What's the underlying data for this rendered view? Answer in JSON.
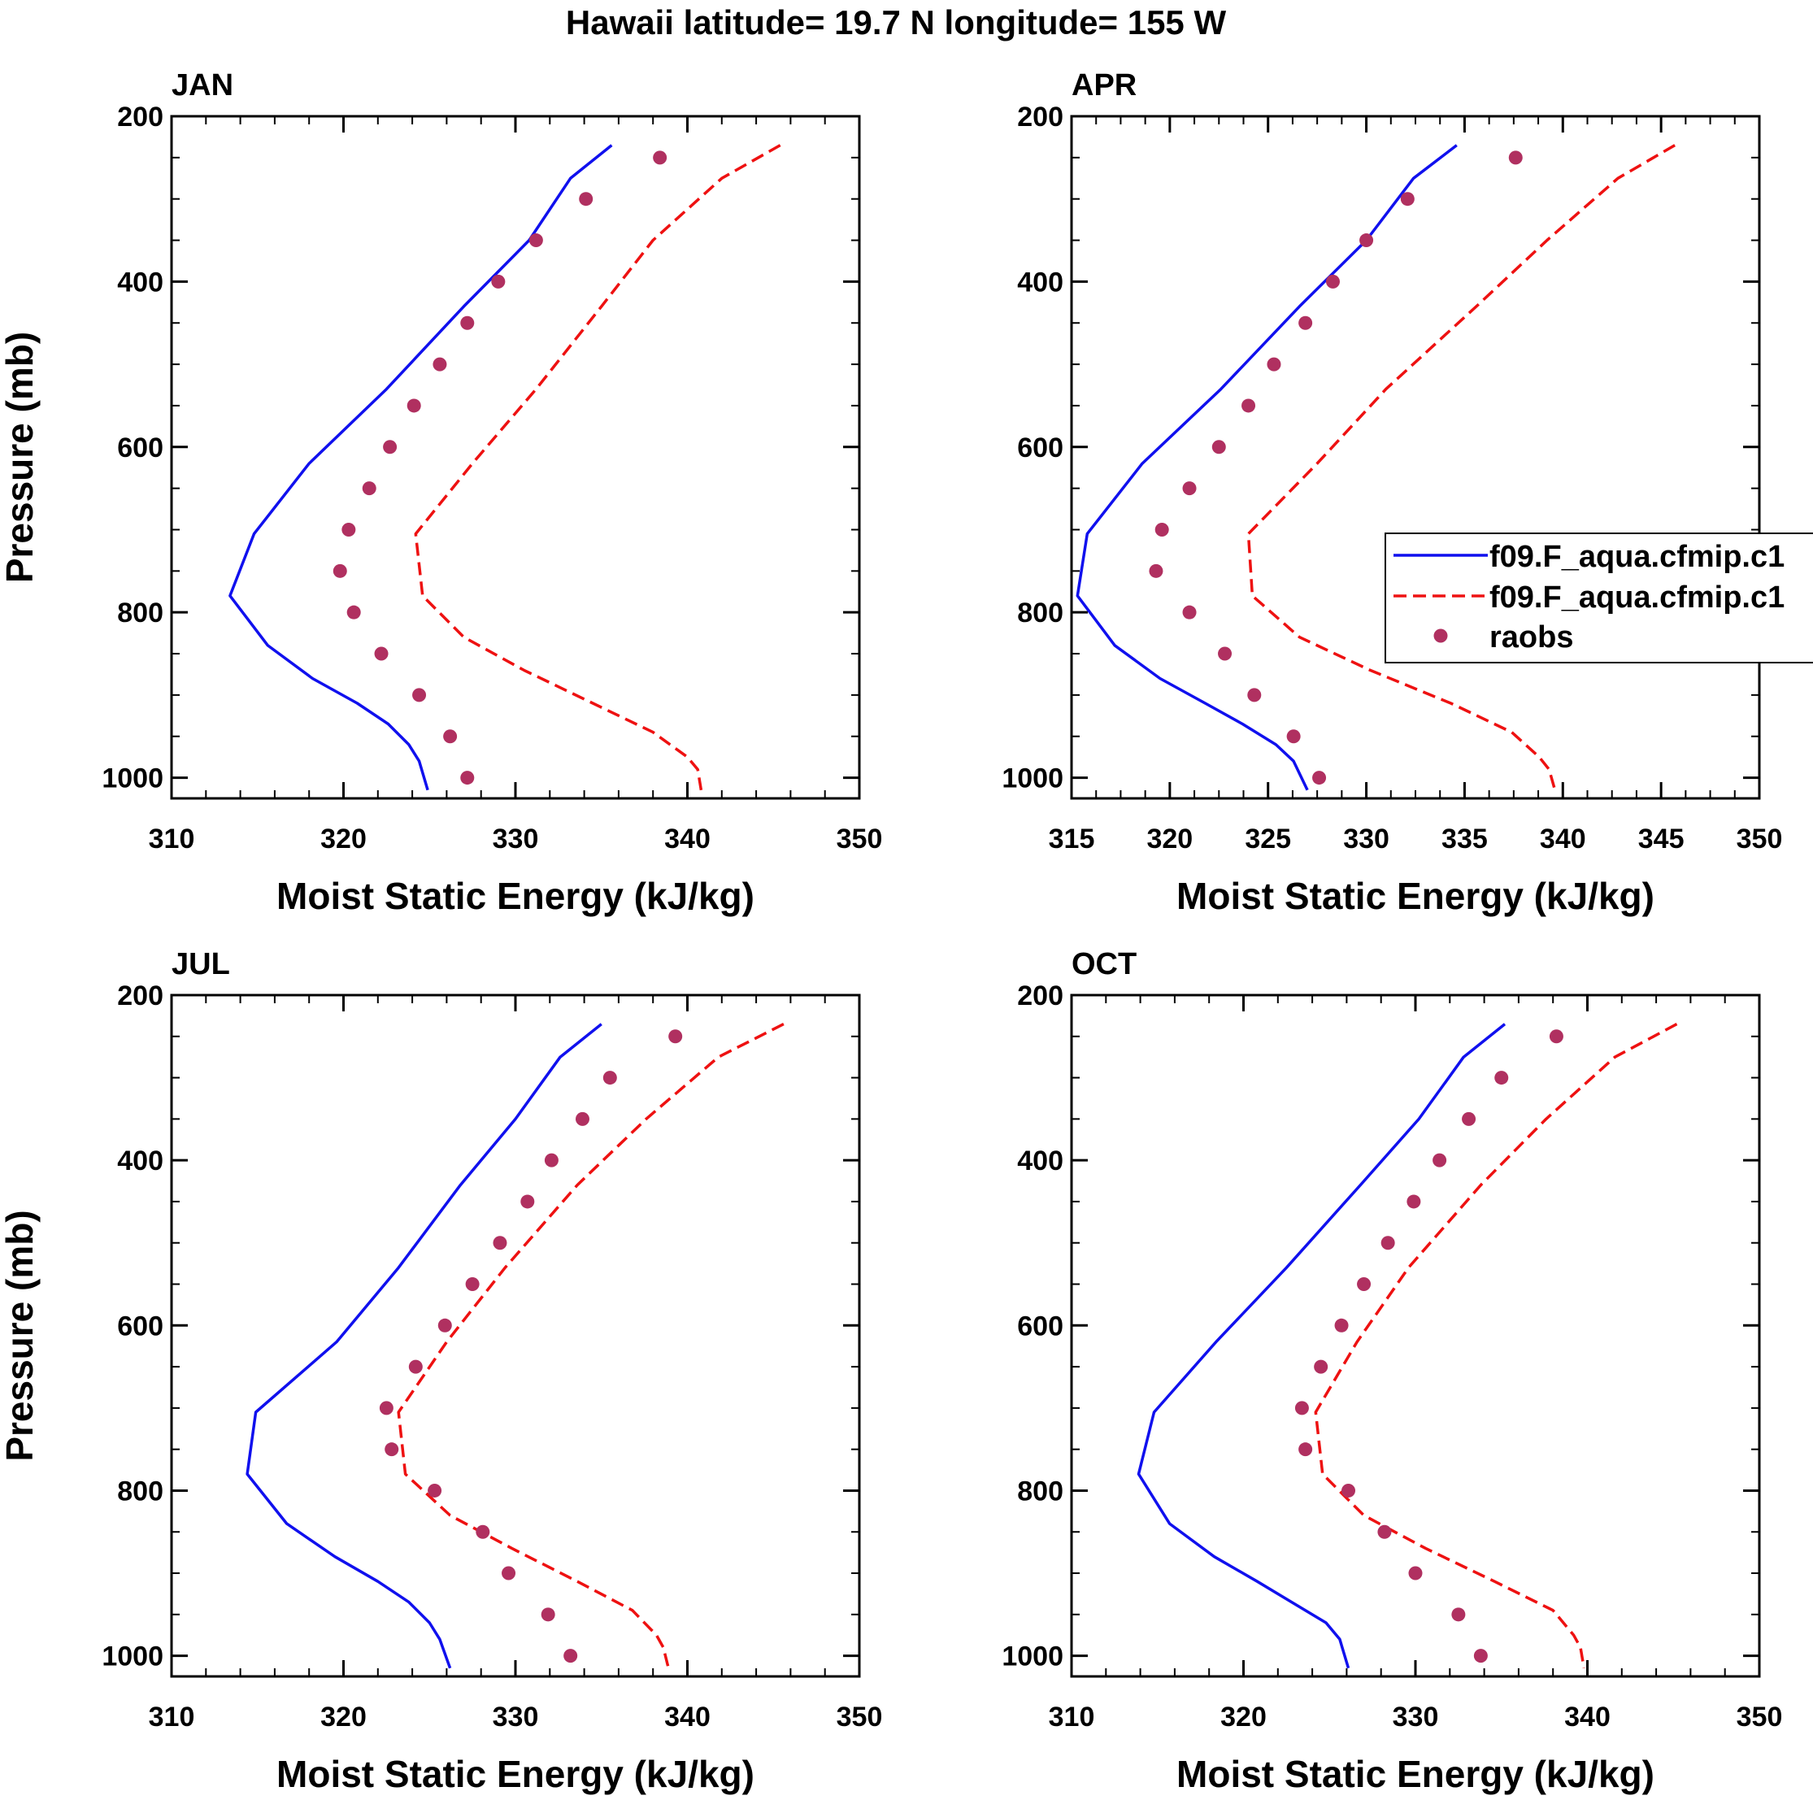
{
  "chart_data": {
    "type": "line",
    "title": "Hawaii  latitude= 19.7 N longitude= 155 W",
    "legend": {
      "placement": "right of APR panel",
      "entries": [
        {
          "label": "f09.F_aqua.cfmip.c1",
          "style": "solid",
          "color": "#1010ee"
        },
        {
          "label": "f09.F_aqua.cfmip.c1",
          "style": "dashed",
          "color": "#ee1111"
        },
        {
          "label": "raobs",
          "style": "markers",
          "color": "#b03060"
        }
      ]
    },
    "panels": [
      {
        "name": "JAN",
        "xlabel": "Moist Static Energy (kJ/kg)",
        "ylabel": "Pressure (mb)",
        "xlim": [
          310,
          350
        ],
        "xticks": [
          310,
          320,
          330,
          340,
          350
        ],
        "ylim": [
          1025,
          200
        ],
        "yticks": [
          200,
          400,
          600,
          800,
          1000
        ],
        "series": [
          {
            "name": "f09.F_aqua.cfmip.c1 (solid)",
            "style": "solid",
            "color": "#1010ee",
            "x": [
              335.6,
              333.2,
              330.8,
              327.0,
              322.5,
              318.0,
              314.8,
              313.4,
              315.6,
              318.2,
              320.8,
              322.6,
              323.8,
              324.4,
              324.9
            ],
            "y": [
              235,
              275,
              350,
              430,
              530,
              620,
              705,
              780,
              840,
              880,
              910,
              935,
              960,
              980,
              1015
            ]
          },
          {
            "name": "f09.F_aqua.cfmip.c1 (dashed)",
            "style": "dashed",
            "color": "#ee1111",
            "x": [
              345.4,
              342.0,
              338.0,
              335.0,
              331.2,
              327.5,
              324.2,
              324.6,
              327.0,
              330.5,
              334.5,
              338.0,
              340.0,
              340.6,
              340.8
            ],
            "y": [
              235,
              275,
              350,
              430,
              530,
              620,
              705,
              780,
              830,
              870,
              910,
              945,
              975,
              990,
              1015
            ]
          },
          {
            "name": "raobs",
            "style": "markers",
            "color": "#b03060",
            "x": [
              338.4,
              334.1,
              331.2,
              329.0,
              327.2,
              325.6,
              324.1,
              322.7,
              321.5,
              320.3,
              319.8,
              320.6,
              322.2,
              324.4,
              326.2,
              327.2
            ],
            "y": [
              250,
              300,
              350,
              400,
              450,
              500,
              550,
              600,
              650,
              700,
              750,
              800,
              850,
              900,
              950,
              1000
            ]
          }
        ]
      },
      {
        "name": "APR",
        "xlabel": "Moist Static Energy (kJ/kg)",
        "ylabel": "",
        "xlim": [
          315,
          350
        ],
        "xticks": [
          315,
          320,
          325,
          330,
          335,
          340,
          345,
          350
        ],
        "ylim": [
          1025,
          200
        ],
        "yticks": [
          200,
          400,
          600,
          800,
          1000
        ],
        "series": [
          {
            "name": "f09.F_aqua.cfmip.c1 (solid)",
            "style": "solid",
            "color": "#1010ee",
            "x": [
              334.6,
              332.4,
              330.0,
              326.6,
              322.6,
              318.6,
              315.8,
              315.3,
              317.2,
              319.5,
              321.8,
              323.7,
              325.4,
              326.3,
              327.0
            ],
            "y": [
              235,
              275,
              350,
              430,
              530,
              620,
              705,
              780,
              840,
              880,
              910,
              935,
              960,
              980,
              1015
            ]
          },
          {
            "name": "f09.F_aqua.cfmip.c1 (dashed)",
            "style": "dashed",
            "color": "#ee1111",
            "x": [
              345.7,
              342.8,
              339.2,
              335.6,
              331.0,
              327.5,
              324.0,
              324.2,
              326.6,
              330.2,
              334.3,
              337.4,
              338.8,
              339.3,
              339.6
            ],
            "y": [
              235,
              275,
              350,
              430,
              530,
              620,
              705,
              780,
              830,
              870,
              910,
              945,
              975,
              990,
              1015
            ]
          },
          {
            "name": "raobs",
            "style": "markers",
            "color": "#b03060",
            "x": [
              337.6,
              332.1,
              330.0,
              328.3,
              326.9,
              325.3,
              324.0,
              322.5,
              321.0,
              319.6,
              319.3,
              321.0,
              322.8,
              324.3,
              326.3,
              327.6
            ],
            "y": [
              250,
              300,
              350,
              400,
              450,
              500,
              550,
              600,
              650,
              700,
              750,
              800,
              850,
              900,
              950,
              1000
            ]
          }
        ]
      },
      {
        "name": "JUL",
        "xlabel": "Moist Static Energy (kJ/kg)",
        "ylabel": "Pressure (mb)",
        "xlim": [
          310,
          350
        ],
        "xticks": [
          310,
          320,
          330,
          340,
          350
        ],
        "ylim": [
          1025,
          200
        ],
        "yticks": [
          200,
          400,
          600,
          800,
          1000
        ],
        "series": [
          {
            "name": "f09.F_aqua.cfmip.c1 (solid)",
            "style": "solid",
            "color": "#1010ee",
            "x": [
              335.0,
              332.6,
              330.0,
              326.8,
              323.2,
              319.6,
              314.9,
              314.4,
              316.7,
              319.5,
              322.0,
              323.8,
              325.0,
              325.6,
              326.2
            ],
            "y": [
              235,
              275,
              350,
              430,
              530,
              620,
              705,
              780,
              840,
              880,
              910,
              935,
              960,
              980,
              1015
            ]
          },
          {
            "name": "f09.F_aqua.cfmip.c1 (dashed)",
            "style": "dashed",
            "color": "#ee1111",
            "x": [
              345.6,
              341.8,
              337.6,
              333.6,
              329.4,
              326.0,
              323.2,
              323.6,
              326.2,
              329.8,
              333.6,
              336.8,
              338.2,
              338.6,
              338.9
            ],
            "y": [
              235,
              275,
              350,
              430,
              530,
              620,
              705,
              780,
              830,
              870,
              910,
              945,
              975,
              990,
              1015
            ]
          },
          {
            "name": "raobs",
            "style": "markers",
            "color": "#b03060",
            "x": [
              339.3,
              335.5,
              333.9,
              332.1,
              330.7,
              329.1,
              327.5,
              325.9,
              324.2,
              322.5,
              322.8,
              325.3,
              328.1,
              329.6,
              331.9,
              333.2
            ],
            "y": [
              250,
              300,
              350,
              400,
              450,
              500,
              550,
              600,
              650,
              700,
              750,
              800,
              850,
              900,
              950,
              1000
            ]
          }
        ]
      },
      {
        "name": "OCT",
        "xlabel": "Moist Static Energy (kJ/kg)",
        "ylabel": "",
        "xlim": [
          310,
          350
        ],
        "xticks": [
          310,
          320,
          330,
          340,
          350
        ],
        "ylim": [
          1025,
          200
        ],
        "yticks": [
          200,
          400,
          600,
          800,
          1000
        ],
        "series": [
          {
            "name": "f09.F_aqua.cfmip.c1 (solid)",
            "style": "solid",
            "color": "#1010ee",
            "x": [
              335.2,
              332.8,
              330.2,
              326.8,
              322.5,
              318.4,
              314.8,
              313.9,
              315.7,
              318.3,
              320.8,
              322.8,
              324.8,
              325.6,
              326.1
            ],
            "y": [
              235,
              275,
              350,
              430,
              530,
              620,
              705,
              780,
              840,
              880,
              910,
              935,
              960,
              980,
              1015
            ]
          },
          {
            "name": "f09.F_aqua.cfmip.c1 (dashed)",
            "style": "dashed",
            "color": "#ee1111",
            "x": [
              345.2,
              341.6,
              337.6,
              333.8,
              329.6,
              326.6,
              324.2,
              324.6,
              327.0,
              330.6,
              334.6,
              338.0,
              339.2,
              339.6,
              339.8
            ],
            "y": [
              235,
              275,
              350,
              430,
              530,
              620,
              705,
              780,
              830,
              870,
              910,
              945,
              975,
              990,
              1015
            ]
          },
          {
            "name": "raobs",
            "style": "markers",
            "color": "#b03060",
            "x": [
              338.2,
              335.0,
              333.1,
              331.4,
              329.9,
              328.4,
              327.0,
              325.7,
              324.5,
              323.4,
              323.6,
              326.1,
              328.2,
              330.0,
              332.5,
              333.8
            ],
            "y": [
              250,
              300,
              350,
              400,
              450,
              500,
              550,
              600,
              650,
              700,
              750,
              800,
              850,
              900,
              950,
              1000
            ]
          }
        ]
      }
    ]
  }
}
